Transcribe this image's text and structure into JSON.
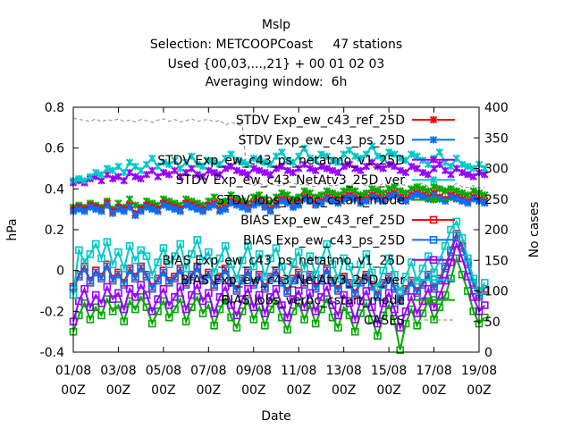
{
  "chart_data": {
    "type": "line",
    "title": "Mslp",
    "subtitle_lines": [
      "Selection: METCOOPCoast     47 stations",
      "Used {00,03,...,21} + 00 01 02 03",
      "Averaging window:  6h"
    ],
    "xlabel": "Date",
    "ylabel": "hPa",
    "y2label": "No cases",
    "x_ticks": [
      "01/08\n00Z",
      "03/08\n00Z",
      "05/08\n00Z",
      "07/08\n00Z",
      "09/08\n00Z",
      "11/08\n00Z",
      "13/08\n00Z",
      "15/08\n00Z",
      "17/08\n00Z",
      "19/08\n00Z"
    ],
    "x_range": [
      "2015-08-01 00Z",
      "2015-08-19 00Z"
    ],
    "ylim": [
      -0.4,
      0.8
    ],
    "y_ticks": [
      "-0.4",
      "-0.2",
      "0",
      "0.2",
      "0.4",
      "0.6",
      "0.8"
    ],
    "y2lim": [
      0,
      400
    ],
    "y2_ticks": [
      "0",
      "50",
      "100",
      "150",
      "200",
      "250",
      "300",
      "350",
      "400"
    ],
    "grid": false,
    "legend_position": "top-right",
    "series": [
      {
        "name": "STDV Exp_ew_c43_ref_25D",
        "color": "#ff0000",
        "marker": "x",
        "axis": "y1",
        "t0": "01/08 00Z",
        "step_hours": 6,
        "values": [
          0.3,
          0.31,
          0.3,
          0.32,
          0.31,
          0.3,
          0.33,
          0.29,
          0.31,
          0.3,
          0.32,
          0.28,
          0.3,
          0.32,
          0.31,
          0.3,
          0.33,
          0.32,
          0.31,
          0.3,
          0.33,
          0.32,
          0.31,
          0.3,
          0.32,
          0.33,
          0.3,
          0.31,
          0.34,
          0.33,
          0.32,
          0.31,
          0.33,
          0.34,
          0.32,
          0.3,
          0.33,
          0.35,
          0.34,
          0.32,
          0.33,
          0.36,
          0.35,
          0.33,
          0.34,
          0.36,
          0.35,
          0.34,
          0.36,
          0.37,
          0.36,
          0.34,
          0.35,
          0.37,
          0.36,
          0.35,
          0.37,
          0.38,
          0.36,
          0.35,
          0.37,
          0.38,
          0.37,
          0.36,
          0.38,
          0.36,
          0.35,
          0.37,
          0.36,
          0.35,
          0.34,
          0.36,
          0.35,
          0.34
        ]
      },
      {
        "name": "STDV Exp_ew_c43_ps_25D",
        "color": "#0070ff",
        "marker": "x",
        "axis": "y1",
        "t0": "01/08 00Z",
        "step_hours": 6,
        "values": [
          0.29,
          0.3,
          0.29,
          0.31,
          0.3,
          0.29,
          0.32,
          0.28,
          0.3,
          0.29,
          0.31,
          0.27,
          0.29,
          0.31,
          0.3,
          0.29,
          0.32,
          0.31,
          0.3,
          0.29,
          0.32,
          0.31,
          0.3,
          0.29,
          0.31,
          0.32,
          0.29,
          0.3,
          0.33,
          0.32,
          0.31,
          0.3,
          0.32,
          0.33,
          0.31,
          0.29,
          0.32,
          0.34,
          0.33,
          0.31,
          0.32,
          0.35,
          0.34,
          0.32,
          0.33,
          0.35,
          0.34,
          0.33,
          0.35,
          0.36,
          0.35,
          0.33,
          0.34,
          0.36,
          0.35,
          0.34,
          0.36,
          0.37,
          0.35,
          0.34,
          0.36,
          0.37,
          0.36,
          0.35,
          0.37,
          0.35,
          0.34,
          0.36,
          0.35,
          0.34,
          0.33,
          0.35,
          0.34,
          0.33
        ]
      },
      {
        "name": "STDV Exp_ew_c43_ps_netatmo_v1_25D",
        "color": "#9900ff",
        "marker": "x",
        "axis": "y1",
        "t0": "01/08 00Z",
        "step_hours": 6,
        "values": [
          0.43,
          0.44,
          0.43,
          0.45,
          0.46,
          0.44,
          0.47,
          0.45,
          0.46,
          0.44,
          0.48,
          0.46,
          0.45,
          0.47,
          0.49,
          0.46,
          0.48,
          0.47,
          0.49,
          0.46,
          0.48,
          0.5,
          0.47,
          0.46,
          0.49,
          0.48,
          0.47,
          0.5,
          0.51,
          0.49,
          0.48,
          0.47,
          0.5,
          0.49,
          0.48,
          0.47,
          0.5,
          0.51,
          0.49,
          0.48,
          0.5,
          0.52,
          0.5,
          0.49,
          0.51,
          0.5,
          0.49,
          0.48,
          0.51,
          0.52,
          0.5,
          0.49,
          0.51,
          0.53,
          0.51,
          0.5,
          0.52,
          0.51,
          0.49,
          0.48,
          0.51,
          0.5,
          0.48,
          0.47,
          0.5,
          0.52,
          0.49,
          0.47,
          0.5,
          0.48,
          0.47,
          0.46,
          0.48,
          0.47
        ]
      },
      {
        "name": "STDV Exp_ew_c43_NetAtv3_25D_ver",
        "color": "#00c8c8",
        "marker": "x",
        "axis": "y1",
        "t0": "01/08 00Z",
        "step_hours": 6,
        "values": [
          0.44,
          0.45,
          0.44,
          0.46,
          0.48,
          0.47,
          0.5,
          0.49,
          0.51,
          0.48,
          0.53,
          0.51,
          0.49,
          0.52,
          0.55,
          0.51,
          0.53,
          0.52,
          0.54,
          0.5,
          0.53,
          0.56,
          0.52,
          0.51,
          0.54,
          0.53,
          0.52,
          0.55,
          0.57,
          0.54,
          0.53,
          0.52,
          0.55,
          0.54,
          0.53,
          0.52,
          0.56,
          0.58,
          0.54,
          0.53,
          0.56,
          0.6,
          0.55,
          0.54,
          0.57,
          0.56,
          0.54,
          0.53,
          0.57,
          0.59,
          0.56,
          0.55,
          0.57,
          0.61,
          0.56,
          0.55,
          0.58,
          0.57,
          0.55,
          0.54,
          0.57,
          0.56,
          0.54,
          0.52,
          0.55,
          0.58,
          0.53,
          0.51,
          0.55,
          0.52,
          0.51,
          0.5,
          0.52,
          0.5
        ]
      },
      {
        "name": "STDV lobs_verbc_cstart_mode",
        "color": "#00aa00",
        "marker": "x",
        "axis": "y1",
        "t0": "01/08 00Z",
        "step_hours": 6,
        "values": [
          0.31,
          0.32,
          0.31,
          0.33,
          0.32,
          0.31,
          0.34,
          0.3,
          0.33,
          0.31,
          0.35,
          0.32,
          0.31,
          0.34,
          0.33,
          0.32,
          0.35,
          0.34,
          0.33,
          0.32,
          0.35,
          0.34,
          0.33,
          0.32,
          0.34,
          0.36,
          0.33,
          0.34,
          0.37,
          0.35,
          0.34,
          0.33,
          0.36,
          0.37,
          0.35,
          0.33,
          0.36,
          0.38,
          0.37,
          0.35,
          0.36,
          0.39,
          0.38,
          0.36,
          0.37,
          0.39,
          0.38,
          0.37,
          0.39,
          0.4,
          0.39,
          0.37,
          0.38,
          0.4,
          0.39,
          0.38,
          0.4,
          0.41,
          0.39,
          0.38,
          0.4,
          0.41,
          0.4,
          0.39,
          0.41,
          0.4,
          0.39,
          0.4,
          0.39,
          0.38,
          0.37,
          0.39,
          0.38,
          0.37
        ]
      },
      {
        "name": "BIAS Exp_ew_c43_ref_25D",
        "color": "#ff0000",
        "marker": "square",
        "axis": "y1",
        "t0": "01/08 00Z",
        "step_hours": 6,
        "values": [
          -0.08,
          -0.02,
          0.02,
          -0.05,
          0.0,
          -0.03,
          0.03,
          -0.04,
          -0.01,
          -0.06,
          0.01,
          -0.03,
          0.02,
          -0.02,
          -0.08,
          -0.04,
          0.0,
          -0.05,
          -0.03,
          0.01,
          -0.06,
          -0.02,
          0.02,
          -0.04,
          -0.01,
          -0.07,
          -0.03,
          0.01,
          -0.05,
          -0.09,
          -0.04,
          0.0,
          -0.06,
          -0.02,
          -0.08,
          -0.03,
          0.0,
          -0.05,
          -0.1,
          -0.04,
          -0.01,
          -0.06,
          -0.02,
          -0.08,
          -0.04,
          0.01,
          -0.05,
          -0.09,
          -0.03,
          -0.06,
          -0.11,
          -0.05,
          -0.02,
          -0.07,
          -0.12,
          -0.06,
          -0.03,
          -0.08,
          -0.14,
          -0.09,
          -0.05,
          -0.1,
          -0.06,
          -0.02,
          -0.08,
          -0.04,
          0.02,
          0.1,
          0.18,
          0.12,
          0.04,
          -0.06,
          -0.12,
          -0.09
        ]
      },
      {
        "name": "BIAS Exp_ew_c43_ps_25D",
        "color": "#0070ff",
        "marker": "square",
        "axis": "y1",
        "t0": "01/08 00Z",
        "step_hours": 6,
        "values": [
          -0.09,
          -0.03,
          0.01,
          -0.06,
          -0.01,
          -0.04,
          0.02,
          -0.05,
          -0.02,
          -0.07,
          0.0,
          -0.04,
          0.01,
          -0.03,
          -0.09,
          -0.05,
          -0.01,
          -0.06,
          -0.04,
          0.0,
          -0.07,
          -0.03,
          0.01,
          -0.05,
          -0.02,
          -0.08,
          -0.04,
          0.0,
          -0.06,
          -0.1,
          -0.05,
          -0.01,
          -0.07,
          -0.03,
          -0.09,
          -0.04,
          -0.01,
          -0.06,
          -0.11,
          -0.05,
          -0.02,
          -0.07,
          -0.03,
          -0.09,
          -0.05,
          0.0,
          -0.06,
          -0.1,
          -0.04,
          -0.07,
          -0.12,
          -0.06,
          -0.03,
          -0.08,
          -0.13,
          -0.07,
          -0.04,
          -0.09,
          -0.15,
          -0.1,
          -0.06,
          -0.11,
          -0.07,
          -0.03,
          -0.09,
          -0.05,
          0.01,
          0.09,
          0.17,
          0.11,
          0.03,
          -0.07,
          -0.13,
          -0.1
        ]
      },
      {
        "name": "BIAS Exp_ew_c43_ps_netatmo_v1_25D",
        "color": "#9900ff",
        "marker": "square",
        "axis": "y1",
        "t0": "01/08 00Z",
        "step_hours": 6,
        "values": [
          -0.25,
          -0.15,
          -0.09,
          -0.18,
          -0.12,
          -0.16,
          -0.08,
          -0.14,
          -0.11,
          -0.19,
          -0.09,
          -0.13,
          -0.07,
          -0.12,
          -0.2,
          -0.14,
          -0.09,
          -0.17,
          -0.13,
          -0.08,
          -0.19,
          -0.12,
          -0.07,
          -0.15,
          -0.11,
          -0.21,
          -0.13,
          -0.08,
          -0.17,
          -0.22,
          -0.14,
          -0.09,
          -0.18,
          -0.12,
          -0.21,
          -0.13,
          -0.09,
          -0.17,
          -0.23,
          -0.14,
          -0.1,
          -0.18,
          -0.11,
          -0.2,
          -0.13,
          -0.08,
          -0.17,
          -0.22,
          -0.12,
          -0.16,
          -0.24,
          -0.15,
          -0.1,
          -0.18,
          -0.26,
          -0.16,
          -0.11,
          -0.19,
          -0.28,
          -0.2,
          -0.13,
          -0.21,
          -0.15,
          -0.09,
          -0.18,
          -0.12,
          -0.05,
          0.04,
          0.13,
          0.06,
          -0.03,
          -0.13,
          -0.2,
          -0.17
        ]
      },
      {
        "name": "BIAS Exp_ew_c43_NetAtv3_25D_ver",
        "color": "#00c8c8",
        "marker": "square",
        "axis": "y1",
        "t0": "01/08 00Z",
        "step_hours": 6,
        "values": [
          -0.12,
          0.1,
          0.04,
          0.08,
          0.13,
          0.06,
          0.14,
          0.03,
          0.09,
          0.01,
          0.12,
          0.05,
          0.1,
          0.07,
          -0.02,
          0.04,
          0.11,
          0.03,
          0.07,
          0.13,
          0.01,
          0.08,
          0.15,
          0.05,
          0.09,
          -0.01,
          0.06,
          0.12,
          0.03,
          -0.04,
          0.05,
          0.12,
          0.02,
          0.08,
          -0.03,
          0.06,
          0.11,
          0.02,
          -0.05,
          0.04,
          0.09,
          0.01,
          0.07,
          -0.02,
          0.05,
          0.13,
          0.03,
          -0.04,
          0.06,
          0.02,
          -0.06,
          0.03,
          0.08,
          -0.01,
          -0.08,
          0.0,
          0.06,
          -0.02,
          -0.1,
          -0.03,
          0.04,
          -0.05,
          0.01,
          0.07,
          -0.01,
          0.05,
          0.12,
          0.2,
          0.24,
          0.16,
          0.06,
          -0.04,
          -0.1,
          -0.06
        ]
      },
      {
        "name": "BIAS lobs_verbc_cstart_mode",
        "color": "#00aa00",
        "marker": "square",
        "axis": "y1",
        "t0": "01/08 00Z",
        "step_hours": 6,
        "values": [
          -0.3,
          -0.22,
          -0.16,
          -0.24,
          -0.18,
          -0.22,
          -0.14,
          -0.2,
          -0.17,
          -0.25,
          -0.15,
          -0.19,
          -0.13,
          -0.18,
          -0.26,
          -0.2,
          -0.15,
          -0.23,
          -0.19,
          -0.14,
          -0.25,
          -0.18,
          -0.13,
          -0.21,
          -0.17,
          -0.27,
          -0.19,
          -0.14,
          -0.23,
          -0.28,
          -0.2,
          -0.15,
          -0.24,
          -0.18,
          -0.27,
          -0.19,
          -0.15,
          -0.23,
          -0.29,
          -0.2,
          -0.16,
          -0.24,
          -0.17,
          -0.26,
          -0.19,
          -0.14,
          -0.23,
          -0.28,
          -0.18,
          -0.22,
          -0.3,
          -0.21,
          -0.16,
          -0.24,
          -0.32,
          -0.22,
          -0.17,
          -0.25,
          -0.39,
          -0.26,
          -0.19,
          -0.27,
          -0.21,
          -0.15,
          -0.24,
          -0.18,
          -0.12,
          -0.04,
          0.06,
          -0.02,
          -0.1,
          -0.2,
          -0.26,
          -0.23
        ]
      },
      {
        "name": "CASES",
        "color": "#999999",
        "marker": "none",
        "dashed": true,
        "axis": "y2",
        "t0": "01/08 00Z",
        "step_hours": 6,
        "values": [
          382,
          380,
          379,
          377,
          381,
          376,
          380,
          378,
          381,
          377,
          379,
          376,
          380,
          378,
          375,
          379,
          381,
          377,
          380,
          376,
          378,
          381,
          377,
          379,
          380,
          376,
          379,
          371,
          375,
          373,
          369,
          275,
          272,
          276,
          271,
          274,
          273,
          271,
          278,
          276,
          273,
          275,
          272,
          270,
          277,
          274,
          271,
          273,
          276,
          270,
          277,
          275,
          272,
          274,
          269,
          276,
          271,
          268,
          275,
          272,
          269,
          273,
          276,
          270,
          274,
          271,
          268,
          272,
          275,
          270,
          269,
          272,
          268,
          270
        ]
      }
    ]
  }
}
